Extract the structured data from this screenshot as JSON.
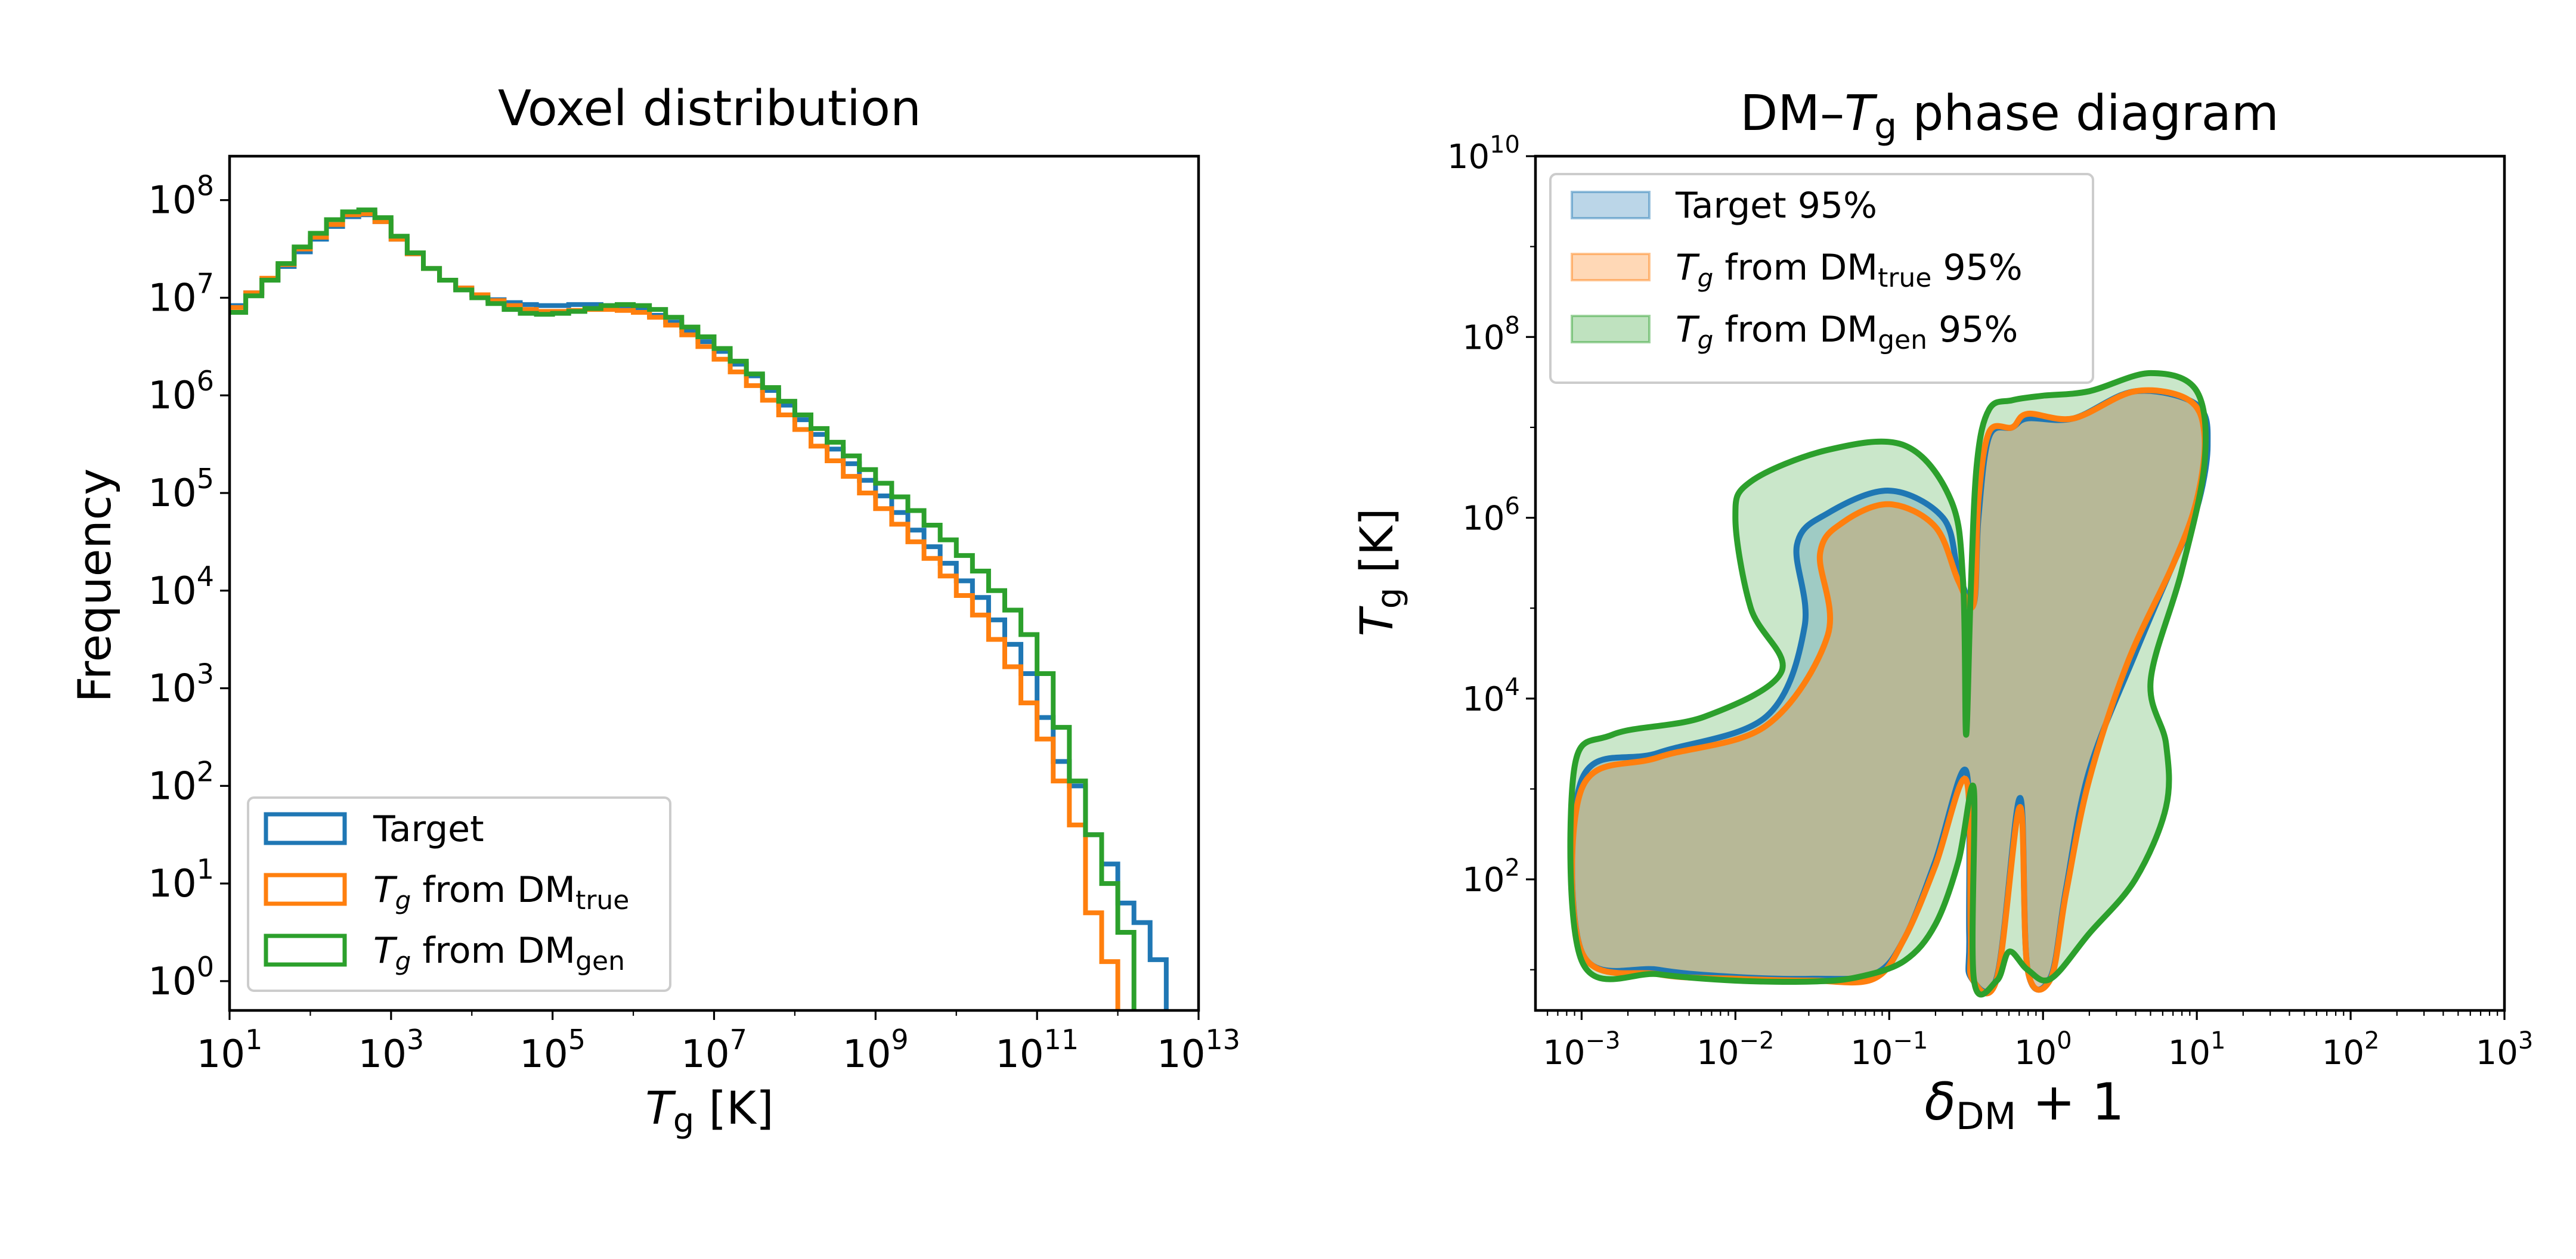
{
  "colors": {
    "target": "#1f77b4",
    "dm_true": "#ff7f0e",
    "dm_gen": "#2ca02c"
  },
  "left_panel": {
    "title": "Voxel distribution",
    "ylabel": "Frequency",
    "xlabel_main": "T",
    "xlabel_sub": "g",
    "xlabel_unit": " [K]",
    "x_ticks": [
      {
        "base": "10",
        "exp": "1"
      },
      {
        "base": "10",
        "exp": "3"
      },
      {
        "base": "10",
        "exp": "5"
      },
      {
        "base": "10",
        "exp": "7"
      },
      {
        "base": "10",
        "exp": "9"
      },
      {
        "base": "10",
        "exp": "11"
      },
      {
        "base": "10",
        "exp": "13"
      }
    ],
    "y_ticks": [
      {
        "base": "10",
        "exp": "0"
      },
      {
        "base": "10",
        "exp": "1"
      },
      {
        "base": "10",
        "exp": "2"
      },
      {
        "base": "10",
        "exp": "3"
      },
      {
        "base": "10",
        "exp": "4"
      },
      {
        "base": "10",
        "exp": "5"
      },
      {
        "base": "10",
        "exp": "6"
      },
      {
        "base": "10",
        "exp": "7"
      },
      {
        "base": "10",
        "exp": "8"
      }
    ],
    "legend": [
      {
        "key": "target",
        "text": "Target"
      },
      {
        "key": "dm_true",
        "prefix": "T",
        "prefix_sub": "g",
        "middle": " from DM",
        "sub": "true",
        "suffix": ""
      },
      {
        "key": "dm_gen",
        "prefix": "T",
        "prefix_sub": "g",
        "middle": " from DM",
        "sub": "gen",
        "suffix": ""
      }
    ]
  },
  "right_panel": {
    "title_main": "DM–",
    "title_T": "T",
    "title_sub": "g",
    "title_end": " phase diagram",
    "ylabel_main": "T",
    "ylabel_sub": "g",
    "ylabel_unit": " [K]",
    "xlabel_main": "δ",
    "xlabel_sub": "DM",
    "xlabel_end": " + 1",
    "x_ticks": [
      {
        "base": "10",
        "exp": "−3"
      },
      {
        "base": "10",
        "exp": "−2"
      },
      {
        "base": "10",
        "exp": "−1"
      },
      {
        "base": "10",
        "exp": "0"
      },
      {
        "base": "10",
        "exp": "1"
      },
      {
        "base": "10",
        "exp": "2"
      },
      {
        "base": "10",
        "exp": "3"
      }
    ],
    "y_ticks": [
      {
        "base": "10",
        "exp": "2"
      },
      {
        "base": "10",
        "exp": "4"
      },
      {
        "base": "10",
        "exp": "6"
      },
      {
        "base": "10",
        "exp": "8"
      },
      {
        "base": "10",
        "exp": "10"
      }
    ],
    "legend": [
      {
        "key": "target",
        "text": "Target 95%"
      },
      {
        "key": "dm_true",
        "prefix": "T",
        "prefix_sub": "g",
        "middle": " from DM",
        "sub": "true",
        "suffix": " 95%"
      },
      {
        "key": "dm_gen",
        "prefix": "T",
        "prefix_sub": "g",
        "middle": " from DM",
        "sub": "gen",
        "suffix": " 95%"
      }
    ]
  },
  "chart_data": [
    {
      "type": "histogram-step",
      "title": "Voxel distribution",
      "xlabel": "T_g [K]",
      "ylabel": "Frequency",
      "xscale": "log",
      "yscale": "log",
      "xlim_log10": [
        1,
        13
      ],
      "ylim_log10": [
        -0.3,
        8.45
      ],
      "legend_position": "lower-left",
      "series": [
        {
          "name": "Target",
          "key": "target",
          "bin_edges_log10": [
            1.0,
            1.2,
            1.4,
            1.6,
            1.8,
            2.0,
            2.2,
            2.4,
            2.6,
            2.8,
            3.0,
            3.2,
            3.4,
            3.6,
            3.8,
            4.0,
            4.2,
            4.4,
            4.6,
            4.8,
            5.0,
            5.2,
            5.4,
            5.6,
            5.8,
            6.0,
            6.2,
            6.4,
            6.6,
            6.8,
            7.0,
            7.2,
            7.4,
            7.6,
            7.8,
            8.0,
            8.2,
            8.4,
            8.6,
            8.8,
            9.0,
            9.2,
            9.4,
            9.6,
            9.8,
            10.0,
            10.2,
            10.4,
            10.6,
            10.8,
            11.0,
            11.2,
            11.4,
            11.6,
            11.8,
            12.0,
            12.2,
            12.4,
            12.6
          ],
          "counts_log10": [
            6.92,
            7.05,
            7.18,
            7.32,
            7.47,
            7.6,
            7.73,
            7.83,
            7.85,
            7.78,
            7.6,
            7.45,
            7.3,
            7.18,
            7.1,
            7.03,
            6.98,
            6.95,
            6.93,
            6.92,
            6.92,
            6.93,
            6.93,
            6.92,
            6.9,
            6.88,
            6.82,
            6.75,
            6.66,
            6.55,
            6.45,
            6.32,
            6.2,
            6.05,
            5.9,
            5.75,
            5.6,
            5.45,
            5.3,
            5.13,
            4.97,
            4.8,
            4.62,
            4.45,
            4.28,
            4.1,
            3.93,
            3.7,
            3.45,
            3.15,
            2.7,
            2.25,
            2.0,
            1.5,
            1.2,
            0.8,
            0.6,
            0.22
          ]
        },
        {
          "name": "T_g from DM_true",
          "key": "dm_true",
          "bin_edges_log10": [
            1.0,
            1.2,
            1.4,
            1.6,
            1.8,
            2.0,
            2.2,
            2.4,
            2.6,
            2.8,
            3.0,
            3.2,
            3.4,
            3.6,
            3.8,
            4.0,
            4.2,
            4.4,
            4.6,
            4.8,
            5.0,
            5.2,
            5.4,
            5.6,
            5.8,
            6.0,
            6.2,
            6.4,
            6.6,
            6.8,
            7.0,
            7.2,
            7.4,
            7.6,
            7.8,
            8.0,
            8.2,
            8.4,
            8.6,
            8.8,
            9.0,
            9.2,
            9.4,
            9.6,
            9.8,
            10.0,
            10.2,
            10.4,
            10.6,
            10.8,
            11.0,
            11.2,
            11.4,
            11.6,
            11.8,
            12.0
          ],
          "counts_log10": [
            6.9,
            7.05,
            7.2,
            7.34,
            7.5,
            7.62,
            7.75,
            7.85,
            7.86,
            7.78,
            7.6,
            7.45,
            7.3,
            7.18,
            7.1,
            7.03,
            6.97,
            6.92,
            6.88,
            6.86,
            6.86,
            6.87,
            6.88,
            6.88,
            6.87,
            6.85,
            6.8,
            6.72,
            6.62,
            6.5,
            6.37,
            6.24,
            6.1,
            5.95,
            5.8,
            5.65,
            5.48,
            5.33,
            5.17,
            5.0,
            4.84,
            4.68,
            4.5,
            4.33,
            4.15,
            3.95,
            3.75,
            3.5,
            3.22,
            2.85,
            2.48,
            2.05,
            1.6,
            0.7,
            0.2
          ]
        },
        {
          "name": "T_g from DM_gen",
          "key": "dm_gen",
          "bin_edges_log10": [
            1.0,
            1.2,
            1.4,
            1.6,
            1.8,
            2.0,
            2.2,
            2.4,
            2.6,
            2.8,
            3.0,
            3.2,
            3.4,
            3.6,
            3.8,
            4.0,
            4.2,
            4.4,
            4.6,
            4.8,
            5.0,
            5.2,
            5.4,
            5.6,
            5.8,
            6.0,
            6.2,
            6.4,
            6.6,
            6.8,
            7.0,
            7.2,
            7.4,
            7.6,
            7.8,
            8.0,
            8.2,
            8.4,
            8.6,
            8.8,
            9.0,
            9.2,
            9.4,
            9.6,
            9.8,
            10.0,
            10.2,
            10.4,
            10.6,
            10.8,
            11.0,
            11.2,
            11.4,
            11.6,
            11.8,
            12.0,
            12.2
          ],
          "counts_log10": [
            6.85,
            7.02,
            7.18,
            7.35,
            7.52,
            7.66,
            7.8,
            7.88,
            7.9,
            7.82,
            7.63,
            7.46,
            7.3,
            7.18,
            7.08,
            7.0,
            6.94,
            6.88,
            6.84,
            6.83,
            6.84,
            6.86,
            6.89,
            6.92,
            6.93,
            6.92,
            6.88,
            6.8,
            6.7,
            6.6,
            6.48,
            6.35,
            6.22,
            6.08,
            5.94,
            5.8,
            5.66,
            5.52,
            5.38,
            5.24,
            5.1,
            4.96,
            4.82,
            4.67,
            4.52,
            4.36,
            4.2,
            4.0,
            3.8,
            3.55,
            3.15,
            2.6,
            2.05,
            1.5,
            1.0,
            0.5
          ]
        }
      ]
    },
    {
      "type": "contour",
      "title": "DM–T_g phase diagram",
      "xlabel": "δ_DM + 1",
      "ylabel": "T_g [K]",
      "xscale": "log",
      "yscale": "log",
      "xlim_log10": [
        -3.3,
        3
      ],
      "ylim_log10": [
        0.55,
        10
      ],
      "legend_position": "top-left",
      "series": [
        {
          "name": "Target 95%",
          "key": "target",
          "regions_log10": [
            [
              [
                -3.0,
                1.2
              ],
              [
                -2.5,
                1.0
              ],
              [
                -2.0,
                0.92
              ],
              [
                -1.5,
                0.9
              ],
              [
                -1.1,
                0.95
              ],
              [
                -0.9,
                1.35
              ],
              [
                -0.7,
                2.2
              ],
              [
                -0.5,
                3.2
              ],
              [
                -0.48,
                1.4
              ],
              [
                -0.47,
                0.92
              ],
              [
                -0.3,
                0.92
              ],
              [
                -0.15,
                2.9
              ],
              [
                -0.1,
                1.0
              ],
              [
                0.05,
                0.92
              ],
              [
                0.15,
                1.9
              ],
              [
                0.3,
                3.2
              ],
              [
                0.6,
                4.5
              ],
              [
                0.85,
                5.5
              ],
              [
                1.0,
                6.1
              ],
              [
                1.07,
                6.8
              ],
              [
                1.0,
                7.25
              ],
              [
                0.6,
                7.4
              ],
              [
                0.2,
                7.1
              ],
              [
                -0.1,
                7.1
              ],
              [
                -0.2,
                7.0
              ],
              [
                -0.35,
                6.9
              ],
              [
                -0.42,
                6.0
              ],
              [
                -0.45,
                5.05
              ],
              [
                -0.55,
                5.4
              ],
              [
                -0.65,
                6.0
              ],
              [
                -1.0,
                6.3
              ],
              [
                -1.4,
                6.05
              ],
              [
                -1.6,
                5.7
              ],
              [
                -1.55,
                4.8
              ],
              [
                -1.8,
                3.8
              ],
              [
                -2.5,
                3.4
              ],
              [
                -3.0,
                3.1
              ]
            ]
          ]
        },
        {
          "name": "T_g from DM_true 95%",
          "key": "dm_true",
          "regions_log10": [
            [
              [
                -3.0,
                1.2
              ],
              [
                -2.5,
                0.95
              ],
              [
                -2.0,
                0.9
              ],
              [
                -1.5,
                0.88
              ],
              [
                -1.1,
                0.9
              ],
              [
                -0.9,
                1.35
              ],
              [
                -0.7,
                2.15
              ],
              [
                -0.5,
                3.1
              ],
              [
                -0.47,
                1.4
              ],
              [
                -0.46,
                0.9
              ],
              [
                -0.3,
                0.9
              ],
              [
                -0.15,
                2.8
              ],
              [
                -0.1,
                1.0
              ],
              [
                0.05,
                0.9
              ],
              [
                0.15,
                1.85
              ],
              [
                0.3,
                3.1
              ],
              [
                0.55,
                4.4
              ],
              [
                0.85,
                5.5
              ],
              [
                1.0,
                6.2
              ],
              [
                1.05,
                6.9
              ],
              [
                0.95,
                7.3
              ],
              [
                0.6,
                7.4
              ],
              [
                0.2,
                7.1
              ],
              [
                -0.1,
                7.15
              ],
              [
                -0.2,
                7.0
              ],
              [
                -0.35,
                6.95
              ],
              [
                -0.42,
                6.2
              ],
              [
                -0.45,
                5.05
              ],
              [
                -0.55,
                5.3
              ],
              [
                -0.7,
                5.9
              ],
              [
                -1.0,
                6.15
              ],
              [
                -1.3,
                5.95
              ],
              [
                -1.45,
                5.6
              ],
              [
                -1.4,
                4.7
              ],
              [
                -1.8,
                3.7
              ],
              [
                -2.5,
                3.35
              ],
              [
                -3.0,
                3.0
              ]
            ]
          ]
        },
        {
          "name": "T_g from DM_gen 95%",
          "key": "dm_gen",
          "regions_log10": [
            [
              [
                -3.0,
                1.1
              ],
              [
                -2.5,
                0.95
              ],
              [
                -2.0,
                0.88
              ],
              [
                -1.5,
                0.87
              ],
              [
                -1.2,
                0.92
              ],
              [
                -0.9,
                1.1
              ],
              [
                -0.7,
                1.5
              ],
              [
                -0.55,
                2.2
              ],
              [
                -0.45,
                3.0
              ],
              [
                -0.45,
                0.9
              ],
              [
                -0.3,
                0.88
              ],
              [
                -0.22,
                1.2
              ],
              [
                -0.1,
                1.0
              ],
              [
                0.05,
                0.9
              ],
              [
                0.3,
                1.4
              ],
              [
                0.6,
                2.0
              ],
              [
                0.8,
                2.8
              ],
              [
                0.8,
                3.5
              ],
              [
                0.7,
                4.2
              ],
              [
                0.9,
                5.4
              ],
              [
                1.05,
                6.6
              ],
              [
                1.0,
                7.4
              ],
              [
                0.7,
                7.6
              ],
              [
                0.3,
                7.4
              ],
              [
                0.0,
                7.35
              ],
              [
                -0.2,
                7.3
              ],
              [
                -0.35,
                7.2
              ],
              [
                -0.43,
                6.6
              ],
              [
                -0.47,
                5.2
              ],
              [
                -0.5,
                3.6
              ],
              [
                -0.52,
                5.3
              ],
              [
                -0.6,
                6.2
              ],
              [
                -0.9,
                6.8
              ],
              [
                -1.4,
                6.75
              ],
              [
                -1.9,
                6.4
              ],
              [
                -2.0,
                6.0
              ],
              [
                -1.9,
                5.0
              ],
              [
                -1.7,
                4.3
              ],
              [
                -2.2,
                3.8
              ],
              [
                -2.8,
                3.6
              ],
              [
                -3.05,
                3.2
              ]
            ]
          ]
        }
      ]
    }
  ]
}
